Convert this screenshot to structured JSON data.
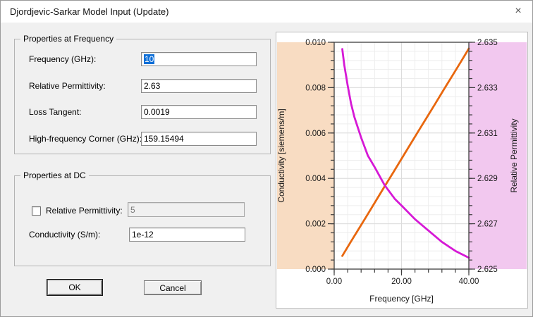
{
  "window": {
    "title": "Djordjevic-Sarkar Model Input (Update)",
    "close_icon": "×"
  },
  "frequency_group": {
    "title": "Properties at Frequency",
    "fields": [
      {
        "label": "Frequency (GHz):",
        "value": "10"
      },
      {
        "label": "Relative Permittivity:",
        "value": "2.63"
      },
      {
        "label": "Loss Tangent:",
        "value": "0.0019"
      },
      {
        "label": "High-frequency Corner (GHz):",
        "value": "159.15494"
      }
    ]
  },
  "dc_group": {
    "title": "Properties at DC",
    "permittivity": {
      "label": "Relative Permittivity:",
      "value": "5",
      "checked": false
    },
    "conductivity": {
      "label": "Conductivity (S/m):",
      "value": "1e-12"
    }
  },
  "buttons": {
    "ok": "OK",
    "cancel": "Cancel"
  },
  "chart_data": {
    "type": "line",
    "title": "",
    "xlabel": "Frequency [GHz]",
    "xlim": [
      0,
      40
    ],
    "x_major_ticks": [
      0,
      20,
      40
    ],
    "x_tick_labels": [
      "0.00",
      "20.00",
      "40.00"
    ],
    "x_minor_step": 4,
    "grid": {
      "minor_color": "#ededed",
      "major_color": "#dcdcdc",
      "on": true
    },
    "axes": {
      "left": {
        "label": "Conductivity [siemens/m]",
        "lim": [
          0,
          0.01
        ],
        "major_ticks": [
          0,
          0.002,
          0.004,
          0.006,
          0.008,
          0.01
        ],
        "tick_labels": [
          "0.000",
          "0.002",
          "0.004",
          "0.006",
          "0.008",
          "0.010"
        ],
        "minor_step": 0.0004,
        "band_color": "#f8dcc2"
      },
      "right": {
        "label": "Relative Permittivity",
        "lim": [
          2.625,
          2.635
        ],
        "major_ticks": [
          2.625,
          2.627,
          2.629,
          2.631,
          2.633,
          2.635
        ],
        "tick_labels": [
          "2.625",
          "2.627",
          "2.629",
          "2.631",
          "2.633",
          "2.635"
        ],
        "minor_step": 0.0004,
        "band_color": "#f2c8ef"
      }
    },
    "series": [
      {
        "name": "Conductivity",
        "axis": "left",
        "color": "#e8670e",
        "x": [
          2.4,
          5,
          7.5,
          10,
          12.5,
          15,
          17.5,
          20,
          22.5,
          25,
          27.5,
          30,
          32.5,
          35,
          37.5,
          40
        ],
        "y": [
          0.00058,
          0.00122,
          0.00182,
          0.00243,
          0.00304,
          0.00365,
          0.00425,
          0.00486,
          0.00547,
          0.00608,
          0.00668,
          0.00729,
          0.0079,
          0.0085,
          0.00911,
          0.00972
        ]
      },
      {
        "name": "Relative Permittivity",
        "axis": "right",
        "color": "#d619d6",
        "x": [
          2.4,
          3,
          4,
          5,
          6,
          8,
          10,
          12,
          15,
          18,
          20,
          24,
          28,
          32,
          36,
          40
        ],
        "y": [
          2.6347,
          2.634,
          2.6331,
          2.6323,
          2.6317,
          2.6308,
          2.63,
          2.6295,
          2.6287,
          2.6281,
          2.6278,
          2.6272,
          2.6267,
          2.6262,
          2.6258,
          2.6255
        ]
      }
    ]
  }
}
